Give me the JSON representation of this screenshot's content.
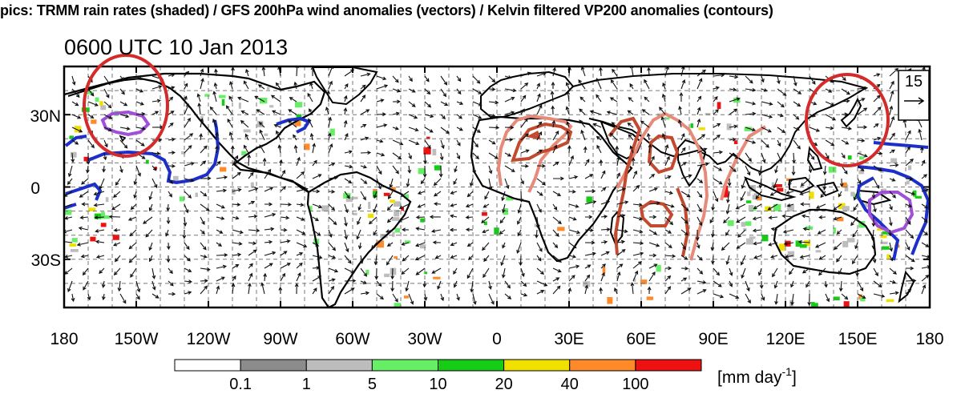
{
  "header": {
    "title": "pics: TRMM rain rates (shaded) / GFS 200hPa wind anomalies (vectors) / Kelvin filtered VP200 anomalies (contours)"
  },
  "map": {
    "time_label": "0600 UTC 10 Jan 2013",
    "lon_ticks": [
      "180",
      "150W",
      "120W",
      "90W",
      "60W",
      "30W",
      "0",
      "30E",
      "60E",
      "90E",
      "120E",
      "150E",
      "180"
    ],
    "lat_ticks": [
      "30N",
      "0",
      "30S"
    ],
    "lon_range": [
      -180,
      180
    ],
    "lat_range": [
      -50,
      50
    ],
    "grid": "dashed",
    "reference_vector": "15",
    "highlight_color": "#d42a2a",
    "contour_colors": {
      "negative": "#1d2fc9",
      "strong_negative": "#a050d8",
      "positive": "#e88a7a",
      "strong_positive": "#c24a2e"
    }
  },
  "colorbar": {
    "labels": [
      "0.1",
      "1",
      "5",
      "10",
      "20",
      "40",
      "100"
    ],
    "colors": [
      "#ffffff",
      "#8c8c8c",
      "#bdbdbd",
      "#66ee66",
      "#16cc16",
      "#f0e000",
      "#ff8a2a",
      "#ee1111"
    ],
    "units_text": "[mm day",
    "units_sup": "-1",
    "units_close": "]"
  }
}
